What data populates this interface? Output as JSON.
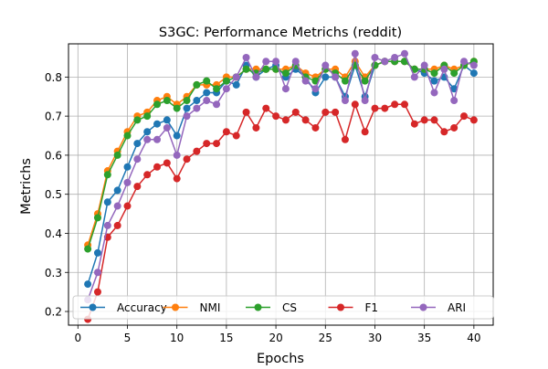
{
  "chart_data": {
    "type": "line",
    "title": "S3GC: Performance Metrichs (reddit)",
    "xlabel": "Epochs",
    "ylabel": "Metrichs",
    "xlim": [
      -0.95,
      41.95
    ],
    "ylim": [
      0.165,
      0.885
    ],
    "xticks": [
      0,
      5,
      10,
      15,
      20,
      25,
      30,
      35,
      40
    ],
    "yticks": [
      0.2,
      0.3,
      0.4,
      0.5,
      0.6,
      0.7,
      0.8
    ],
    "grid": true,
    "legend": {
      "placement": "lower-center",
      "columns": 5
    },
    "x": [
      1,
      2,
      3,
      4,
      5,
      6,
      7,
      8,
      9,
      10,
      11,
      12,
      13,
      14,
      15,
      16,
      17,
      18,
      19,
      20,
      21,
      22,
      23,
      24,
      25,
      26,
      27,
      28,
      29,
      30,
      31,
      32,
      33,
      34,
      35,
      36,
      37,
      38,
      39,
      40
    ],
    "series": [
      {
        "name": "Accuracy",
        "color": "#1f77b4",
        "values": [
          0.27,
          0.35,
          0.48,
          0.51,
          0.57,
          0.63,
          0.66,
          0.68,
          0.69,
          0.65,
          0.72,
          0.74,
          0.76,
          0.76,
          0.79,
          0.78,
          0.83,
          0.8,
          0.82,
          0.83,
          0.8,
          0.82,
          0.8,
          0.76,
          0.8,
          0.8,
          0.75,
          0.83,
          0.75,
          0.83,
          0.84,
          0.84,
          0.84,
          0.82,
          0.81,
          0.79,
          0.8,
          0.77,
          0.83,
          0.81
        ]
      },
      {
        "name": "NMI",
        "color": "#ff7f0e",
        "values": [
          0.37,
          0.45,
          0.56,
          0.61,
          0.66,
          0.7,
          0.71,
          0.74,
          0.75,
          0.73,
          0.75,
          0.78,
          0.78,
          0.78,
          0.8,
          0.8,
          0.82,
          0.82,
          0.82,
          0.82,
          0.82,
          0.83,
          0.81,
          0.8,
          0.82,
          0.82,
          0.8,
          0.84,
          0.8,
          0.83,
          0.84,
          0.84,
          0.84,
          0.82,
          0.82,
          0.82,
          0.83,
          0.82,
          0.83,
          0.84
        ]
      },
      {
        "name": "CS",
        "color": "#2ca02c",
        "values": [
          0.36,
          0.44,
          0.55,
          0.6,
          0.65,
          0.69,
          0.7,
          0.73,
          0.74,
          0.72,
          0.74,
          0.78,
          0.79,
          0.77,
          0.79,
          0.8,
          0.82,
          0.81,
          0.82,
          0.82,
          0.81,
          0.83,
          0.8,
          0.79,
          0.82,
          0.81,
          0.79,
          0.83,
          0.79,
          0.83,
          0.84,
          0.84,
          0.84,
          0.82,
          0.82,
          0.81,
          0.83,
          0.81,
          0.83,
          0.84
        ]
      },
      {
        "name": "F1",
        "color": "#d62728",
        "values": [
          0.18,
          0.25,
          0.39,
          0.42,
          0.47,
          0.52,
          0.55,
          0.57,
          0.58,
          0.54,
          0.59,
          0.61,
          0.63,
          0.63,
          0.66,
          0.65,
          0.71,
          0.67,
          0.72,
          0.7,
          0.69,
          0.71,
          0.69,
          0.67,
          0.71,
          0.71,
          0.64,
          0.73,
          0.66,
          0.72,
          0.72,
          0.73,
          0.73,
          0.68,
          0.69,
          0.69,
          0.66,
          0.67,
          0.7,
          0.69
        ]
      },
      {
        "name": "ARI",
        "color": "#9467bd",
        "values": [
          0.23,
          0.3,
          0.42,
          0.47,
          0.53,
          0.59,
          0.64,
          0.64,
          0.67,
          0.6,
          0.7,
          0.72,
          0.74,
          0.73,
          0.77,
          0.8,
          0.85,
          0.8,
          0.84,
          0.84,
          0.77,
          0.84,
          0.79,
          0.77,
          0.83,
          0.8,
          0.74,
          0.86,
          0.74,
          0.85,
          0.84,
          0.85,
          0.86,
          0.8,
          0.83,
          0.76,
          0.82,
          0.74,
          0.84,
          0.83
        ]
      }
    ]
  }
}
